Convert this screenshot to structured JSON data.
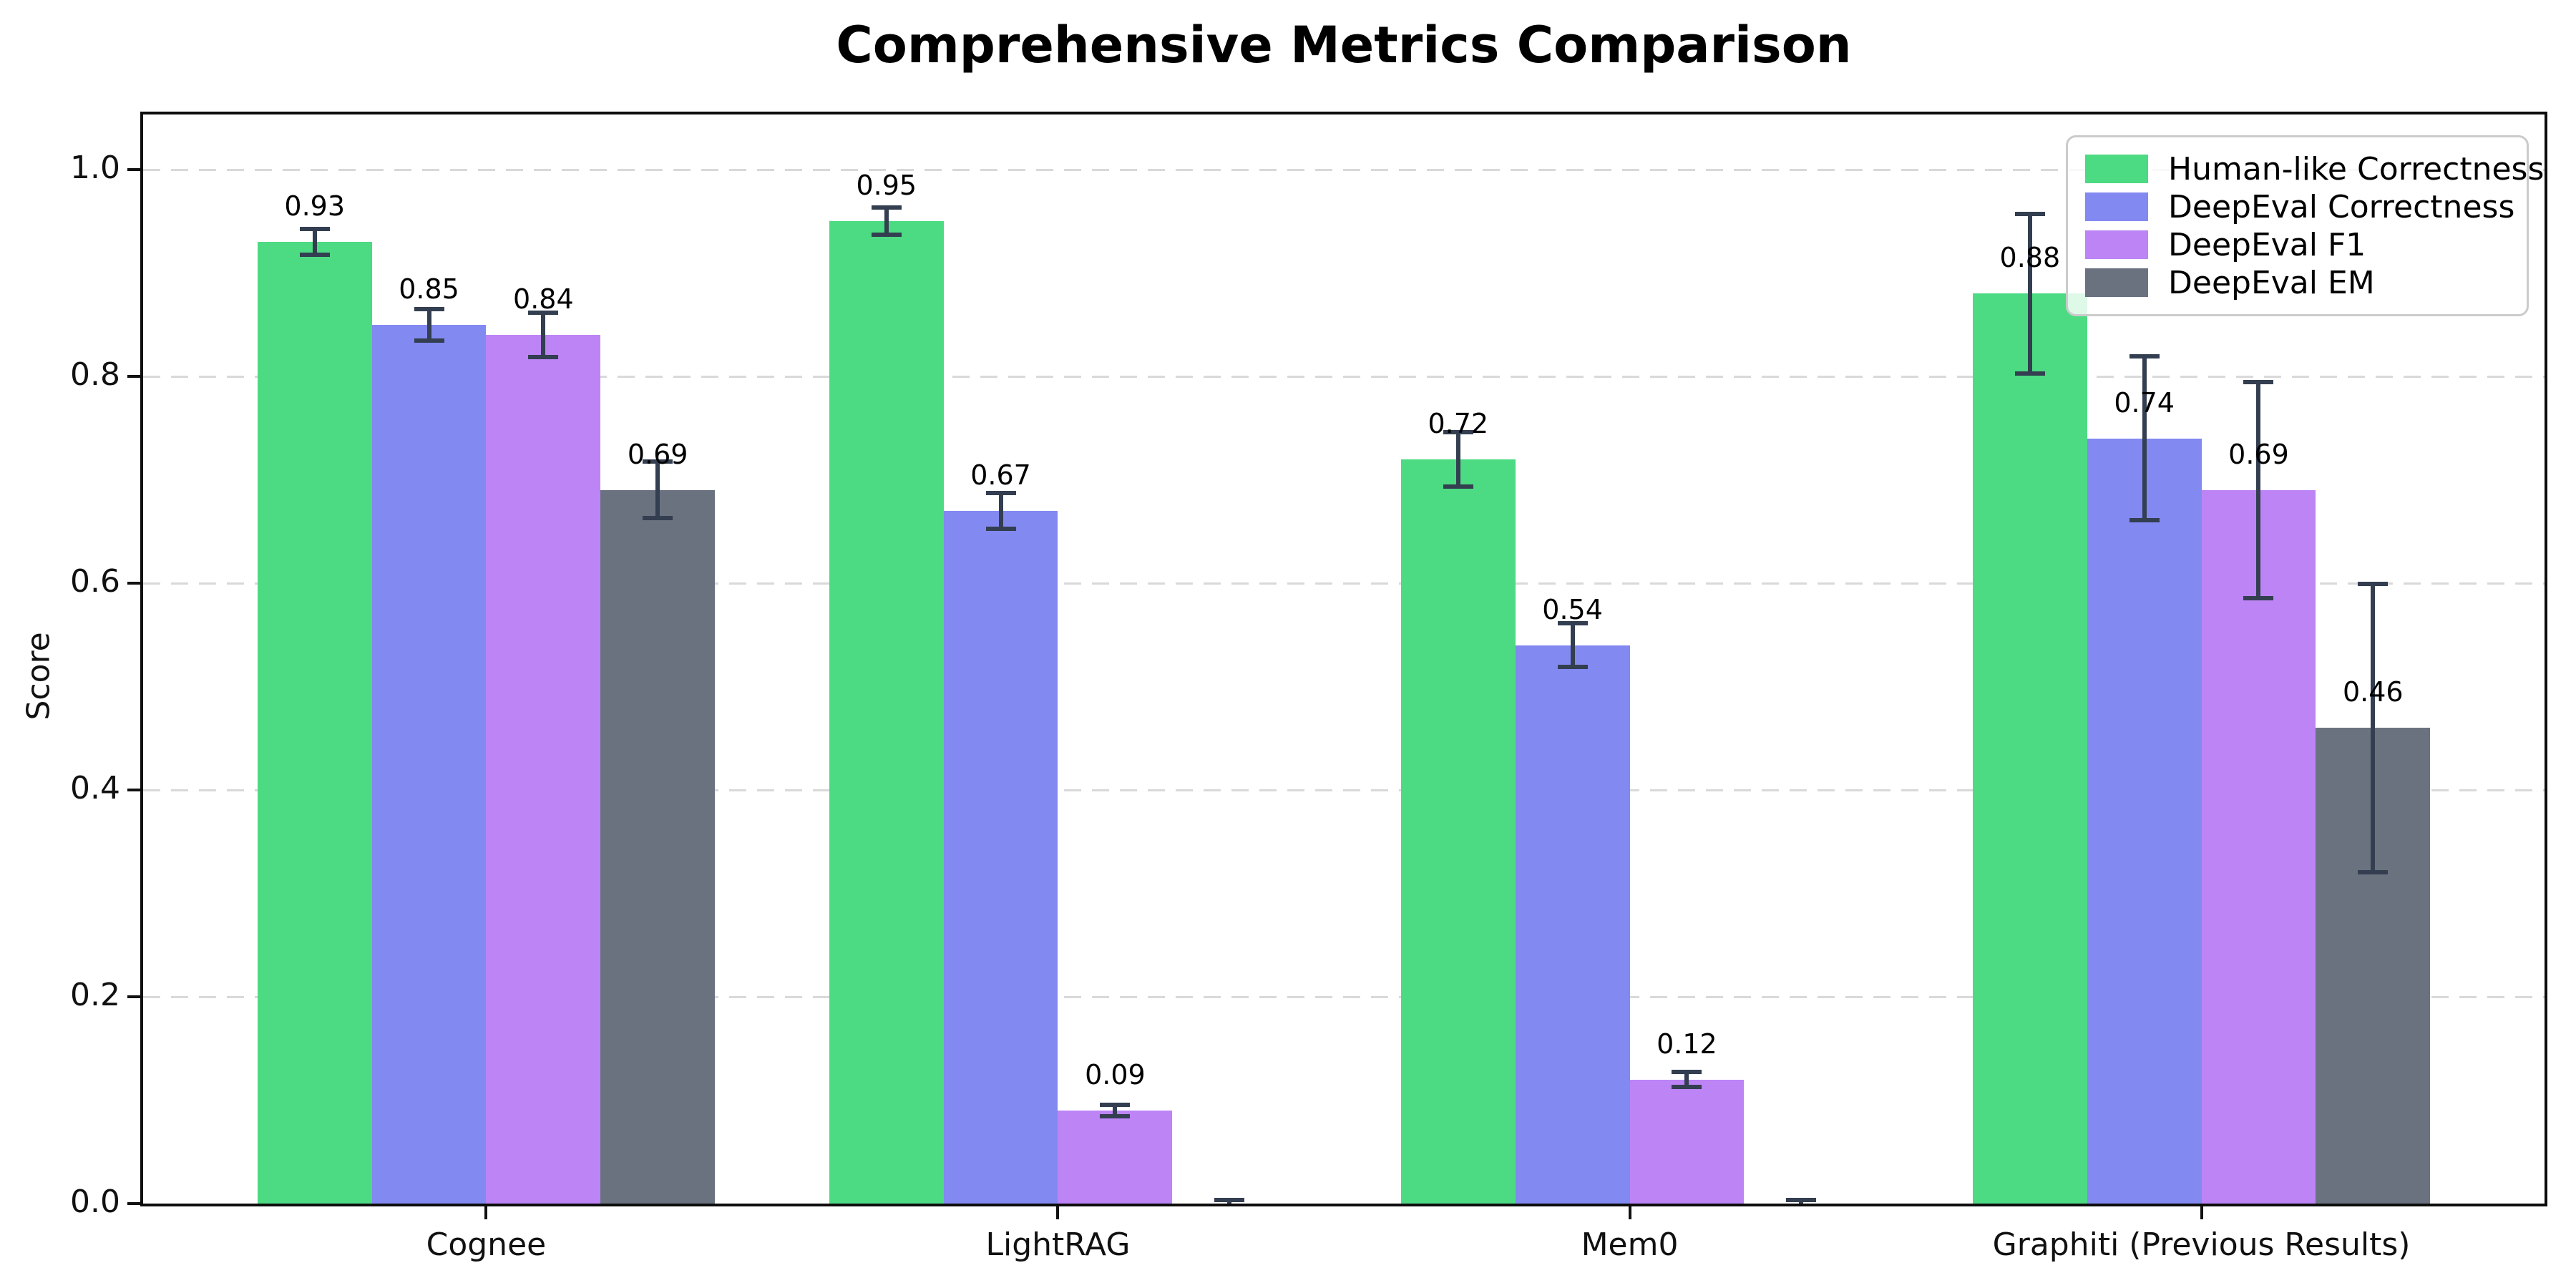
{
  "figure": {
    "background": "#ffffff"
  },
  "chart_data": {
    "type": "bar",
    "title": "Comprehensive Metrics Comparison",
    "xlabel": "",
    "ylabel": "Score",
    "ylim": [
      0.0,
      1.05
    ],
    "yticks": [
      "0.0",
      "0.2",
      "0.4",
      "0.6",
      "0.8",
      "1.0"
    ],
    "grid": "horizontal dashed gridlines at each y tick",
    "legend_position": "upper right",
    "categories": [
      "Cognee",
      "LightRAG",
      "Mem0",
      "Graphiti (Previous Results)"
    ],
    "series": [
      {
        "name": "Human-like Correctness",
        "color": "#4cdb82",
        "values": [
          0.93,
          0.95,
          0.72,
          0.88
        ],
        "errors": [
          0.013,
          0.014,
          0.027,
          0.078
        ],
        "value_labels": [
          "0.93",
          "0.95",
          "0.72",
          "0.88"
        ]
      },
      {
        "name": "DeepEval Correctness",
        "color": "#8289f0",
        "values": [
          0.85,
          0.67,
          0.54,
          0.74
        ],
        "errors": [
          0.016,
          0.018,
          0.022,
          0.08
        ],
        "value_labels": [
          "0.85",
          "0.67",
          "0.54",
          "0.74"
        ]
      },
      {
        "name": "DeepEval F1",
        "color": "#bc84f5",
        "values": [
          0.84,
          0.09,
          0.12,
          0.69
        ],
        "errors": [
          0.022,
          0.006,
          0.008,
          0.105
        ],
        "value_labels": [
          "0.84",
          "0.09",
          "0.12",
          "0.69"
        ]
      },
      {
        "name": "DeepEval EM",
        "color": "#6a7280",
        "values": [
          0.69,
          0.0,
          0.0,
          0.46
        ],
        "errors": [
          0.028,
          0.004,
          0.004,
          0.14
        ],
        "value_labels": [
          "0.69",
          "",
          "",
          "0.46"
        ]
      }
    ],
    "error_bar_color": "#333e50",
    "gridline_color": "#d9d9d9",
    "axis_color": "#0d0d0d"
  }
}
